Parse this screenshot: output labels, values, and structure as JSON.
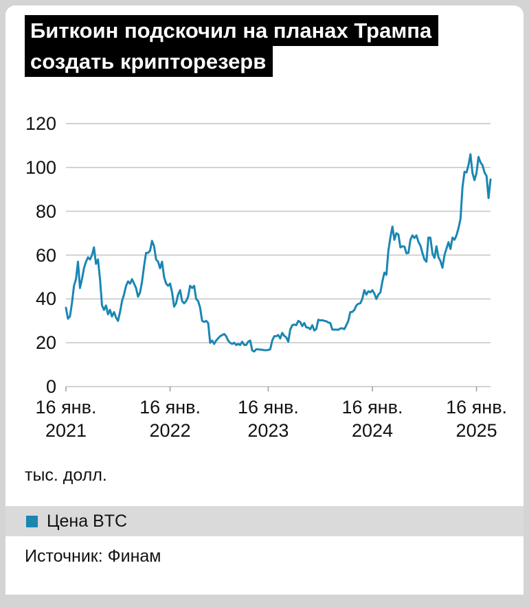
{
  "title": {
    "line1": "Биткоин подскочил на планах Трампа",
    "line2": "создать крипторезерв"
  },
  "chart_data": {
    "type": "line",
    "title": "Биткоин подскочил на планах Трампа создать крипторезерв",
    "ylabel": "тыс. долл.",
    "xlabel": "",
    "ylim": [
      0,
      120
    ],
    "yticks": [
      0,
      20,
      40,
      60,
      80,
      100,
      120
    ],
    "grid": true,
    "grid_color": "#c4c4c4",
    "legend_position": "bottom",
    "xticks": [
      {
        "line1": "16 янв.",
        "line2": "2021",
        "index": 0
      },
      {
        "line1": "16 янв.",
        "line2": "2022",
        "index": 52
      },
      {
        "line1": "16 янв.",
        "line2": "2023",
        "index": 101
      },
      {
        "line1": "16 янв.",
        "line2": "2024",
        "index": 153
      },
      {
        "line1": "16 янв.",
        "line2": "2025",
        "index": 205
      }
    ],
    "series": [
      {
        "name": "Цена BTC",
        "color": "#1a86b2",
        "values": [
          36,
          31,
          32,
          38,
          46,
          49,
          57,
          45,
          49,
          54,
          57,
          59,
          58,
          60,
          63.5,
          56,
          58,
          49,
          37,
          35,
          37,
          33,
          35,
          32,
          34,
          31.5,
          30,
          34,
          39,
          42,
          46,
          48,
          47,
          49,
          47,
          45,
          41,
          43,
          48,
          55,
          61,
          61,
          62,
          66.5,
          64,
          58,
          57,
          54,
          57,
          50,
          47,
          46,
          47,
          43,
          36.5,
          38,
          42,
          44,
          39,
          38,
          39,
          41,
          46,
          45,
          46,
          40,
          39,
          36,
          30,
          29.5,
          30,
          29,
          20,
          21,
          19.5,
          21,
          22,
          23,
          23.5,
          24,
          23,
          21,
          20,
          19.5,
          20,
          19,
          19.5,
          19,
          20.5,
          19,
          19,
          20.5,
          21,
          16.5,
          16,
          17,
          17,
          16.9,
          16.8,
          16.6,
          16.6,
          16.7,
          17,
          21,
          23,
          23,
          23.5,
          22,
          24.5,
          23.2,
          22.4,
          20.5,
          26,
          28,
          28.3,
          28,
          30,
          29.4,
          27.6,
          29,
          27,
          26.9,
          26.2,
          28,
          25.6,
          26.3,
          30.5,
          30.2,
          30.3,
          30,
          29.8,
          29.2,
          29,
          26,
          26,
          26,
          25.9,
          26.5,
          26.6,
          26.2,
          28,
          30,
          34,
          34.1,
          35,
          37,
          37.8,
          38,
          40,
          44,
          42,
          43.5,
          43,
          44,
          42.5,
          40,
          42,
          43,
          48,
          52,
          51,
          62,
          68,
          73,
          67,
          70,
          69.4,
          63.5,
          64,
          63.9,
          60.8,
          61,
          67,
          69,
          67.8,
          69,
          66,
          64.3,
          61,
          58,
          57,
          68,
          67.9,
          60.7,
          58.7,
          64,
          59,
          57.3,
          54.2,
          60,
          63,
          65.9,
          62.8,
          68,
          67,
          69,
          72.3,
          76.5,
          91,
          98,
          97.7,
          101,
          106,
          97.3,
          94.2,
          97.5,
          104.8,
          102.3,
          101,
          97.7,
          96.1,
          86,
          94.5
        ]
      }
    ]
  },
  "legend": {
    "items": [
      {
        "label": "Цена BTC",
        "color": "#1a86b2"
      }
    ]
  },
  "footer": {
    "source_text": "Источник: Финам"
  }
}
